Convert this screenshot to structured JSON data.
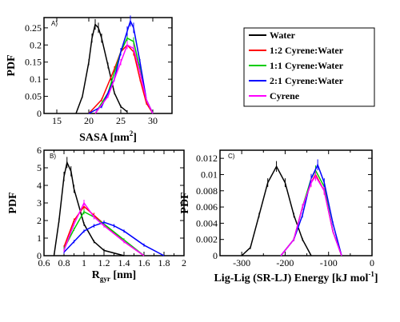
{
  "colors": {
    "Water": "#000000",
    "1:2 Cyrene:Water": "#ff0000",
    "1:1 Cyrene:Water": "#00cc00",
    "2:1 Cyrene:Water": "#0000ff",
    "Cyrene": "#ff00ff"
  },
  "legend": {
    "entries": [
      "Water",
      "1:2 Cyrene:Water",
      "1:1 Cyrene:Water",
      "2:1 Cyrene:Water",
      "Cyrene"
    ]
  },
  "chart_data": [
    {
      "type": "line",
      "panel_label": "A)",
      "xlabel": "SASA [nm",
      "xlabel_sup": "2",
      "xlabel_tail": "]",
      "ylabel": "PDF",
      "xlim": [
        13,
        33
      ],
      "ylim": [
        0,
        0.28
      ],
      "xticks": [
        15,
        20,
        25,
        30
      ],
      "xtick_labels": [
        "15",
        "20",
        "25",
        "30"
      ],
      "yticks": [
        0,
        0.05,
        0.1,
        0.15,
        0.2,
        0.25
      ],
      "ytick_labels": [
        "0",
        "0.05",
        "0.1",
        "0.15",
        "0.2",
        "0.25"
      ],
      "series": [
        {
          "name": "Water",
          "x": [
            18,
            19,
            20,
            20.5,
            21,
            21.5,
            22,
            23,
            24,
            25,
            26
          ],
          "y": [
            0,
            0.05,
            0.15,
            0.22,
            0.26,
            0.25,
            0.22,
            0.14,
            0.06,
            0.02,
            0.005
          ]
        },
        {
          "name": "1:2 Cyrene:Water",
          "x": [
            20,
            22,
            24,
            25,
            26,
            27,
            28,
            29,
            30
          ],
          "y": [
            0,
            0.04,
            0.13,
            0.18,
            0.2,
            0.18,
            0.1,
            0.03,
            0
          ]
        },
        {
          "name": "1:1 Cyrene:Water",
          "x": [
            21,
            23,
            25,
            26,
            27,
            28,
            29,
            30
          ],
          "y": [
            0,
            0.06,
            0.18,
            0.22,
            0.21,
            0.13,
            0.04,
            0
          ]
        },
        {
          "name": "2:1 Cyrene:Water",
          "x": [
            20,
            22,
            24,
            25,
            26,
            26.5,
            27,
            28,
            29,
            30
          ],
          "y": [
            0,
            0.02,
            0.1,
            0.18,
            0.24,
            0.27,
            0.25,
            0.15,
            0.04,
            0
          ]
        },
        {
          "name": "Cyrene",
          "x": [
            21,
            23,
            25,
            26,
            27,
            28,
            29,
            30
          ],
          "y": [
            0,
            0.05,
            0.15,
            0.2,
            0.19,
            0.12,
            0.04,
            0
          ]
        }
      ]
    },
    {
      "type": "line",
      "panel_label": "B)",
      "xlabel": "R",
      "xlabel_sub": "gyr",
      "xlabel_tail": " [nm]",
      "ylabel": "PDF",
      "xlim": [
        0.6,
        2
      ],
      "ylim": [
        0,
        6
      ],
      "xticks": [
        0.6,
        0.7,
        0.8,
        0.9,
        1,
        1.1,
        1.2,
        1.3,
        1.4,
        1.5,
        1.6,
        1.7,
        1.8,
        1.9,
        2
      ],
      "xtick_labels": [
        "0.6",
        "",
        "0.8",
        "",
        "1",
        "",
        "1.2",
        "",
        "1.4",
        "",
        "1.6",
        "",
        "1.8",
        "",
        "2"
      ],
      "yticks": [
        0,
        1,
        2,
        3,
        4,
        5,
        6
      ],
      "ytick_labels": [
        "0",
        "1",
        "2",
        "3",
        "4",
        "5",
        "6"
      ],
      "series": [
        {
          "name": "Water",
          "x": [
            0.7,
            0.75,
            0.8,
            0.83,
            0.87,
            0.9,
            1,
            1.1,
            1.2,
            1.4
          ],
          "y": [
            0,
            2,
            4.5,
            5.3,
            4.8,
            3.8,
            1.8,
            0.8,
            0.3,
            0
          ]
        },
        {
          "name": "1:2 Cyrene:Water",
          "x": [
            0.8,
            0.9,
            1,
            1.1,
            1.2,
            1.4,
            1.6
          ],
          "y": [
            0.5,
            2,
            2.8,
            2.3,
            1.8,
            0.8,
            0
          ]
        },
        {
          "name": "1:1 Cyrene:Water",
          "x": [
            0.8,
            0.9,
            1,
            1.1,
            1.2,
            1.4,
            1.6
          ],
          "y": [
            0.4,
            1.5,
            2.5,
            2.2,
            1.8,
            0.9,
            0
          ]
        },
        {
          "name": "2:1 Cyrene:Water",
          "x": [
            0.8,
            0.9,
            1,
            1.1,
            1.2,
            1.3,
            1.4,
            1.6,
            1.8
          ],
          "y": [
            0.2,
            0.8,
            1.4,
            1.7,
            1.9,
            1.7,
            1.4,
            0.6,
            0
          ]
        },
        {
          "name": "Cyrene",
          "x": [
            0.8,
            0.9,
            1,
            1.1,
            1.2,
            1.4,
            1.6
          ],
          "y": [
            0.3,
            1.8,
            3.0,
            2.2,
            1.7,
            0.8,
            0
          ]
        }
      ]
    },
    {
      "type": "line",
      "panel_label": "C)",
      "xlabel": "Lig-Lig (SR-LJ) Energy [kJ mol",
      "xlabel_sup": "-1",
      "xlabel_tail": "]",
      "ylabel": "PDF",
      "xlim": [
        -350,
        0
      ],
      "ylim": [
        0,
        0.013
      ],
      "xticks": [
        -300,
        -250,
        -200,
        -150,
        -100,
        -50,
        0
      ],
      "xtick_labels": [
        "-300",
        "",
        "-200",
        "",
        "-100",
        "",
        "0"
      ],
      "yticks": [
        0,
        0.002,
        0.004,
        0.006,
        0.008,
        0.01,
        0.012
      ],
      "ytick_labels": [
        "0",
        "0.002",
        "0.004",
        "0.006",
        "0.008",
        "0.01",
        "0.012"
      ],
      "series": [
        {
          "name": "Water",
          "x": [
            -300,
            -280,
            -260,
            -240,
            -220,
            -200,
            -180,
            -160,
            -140
          ],
          "y": [
            0,
            0.001,
            0.005,
            0.009,
            0.011,
            0.009,
            0.005,
            0.002,
            0
          ]
        },
        {
          "name": "1:2 Cyrene:Water",
          "x": [
            -210,
            -180,
            -160,
            -140,
            -130,
            -110,
            -90,
            -70
          ],
          "y": [
            0,
            0.002,
            0.006,
            0.009,
            0.01,
            0.008,
            0.003,
            0
          ]
        },
        {
          "name": "1:1 Cyrene:Water",
          "x": [
            -210,
            -180,
            -160,
            -140,
            -130,
            -110,
            -90,
            -70
          ],
          "y": [
            0,
            0.002,
            0.006,
            0.0095,
            0.0105,
            0.0085,
            0.003,
            0
          ]
        },
        {
          "name": "2:1 Cyrene:Water",
          "x": [
            -210,
            -180,
            -160,
            -140,
            -125,
            -110,
            -90,
            -70
          ],
          "y": [
            0,
            0.002,
            0.005,
            0.0095,
            0.0112,
            0.009,
            0.004,
            0
          ]
        },
        {
          "name": "Cyrene",
          "x": [
            -210,
            -180,
            -160,
            -140,
            -130,
            -110,
            -90,
            -70
          ],
          "y": [
            0,
            0.002,
            0.006,
            0.009,
            0.0098,
            0.008,
            0.003,
            0
          ]
        }
      ]
    }
  ]
}
